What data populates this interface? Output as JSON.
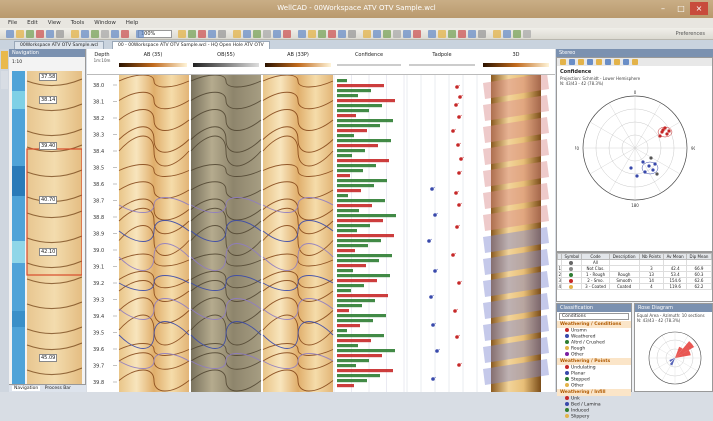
{
  "app": {
    "title": "WellCAD - 00Workspace ATV OTV Sample.wcl",
    "pref_label": "Preferences"
  },
  "menu": [
    "File",
    "Edit",
    "View",
    "Tools",
    "Window",
    "Help"
  ],
  "toolbar": {
    "zoom": "100%"
  },
  "tabs": [
    {
      "label": "00Workspace ATV OTV Sample.wcl",
      "active": false
    },
    {
      "label": "00 - 00Workspace ATV OTV Sample.wcl - HQ Open Hole ATV OTV",
      "active": true
    }
  ],
  "left_panel": {
    "title": "Navigation",
    "scale_top": "1:10",
    "labels": [
      "37.58",
      "38.14",
      "39.40",
      "40.70",
      "42.10",
      "45.09"
    ],
    "footer_tabs": [
      "Navigation",
      "Process Bar"
    ]
  },
  "main": {
    "depth_header": "Depth",
    "depth_unit": "1m:10m",
    "columns": [
      "AB (35)",
      "OB(55)",
      "AB (33P)",
      "Confidence",
      "Tadpole",
      "3D"
    ],
    "depths": [
      "38.0",
      "38.1",
      "38.2",
      "38.3",
      "38.4",
      "38.5",
      "38.6",
      "38.7",
      "38.8",
      "38.9",
      "39.0",
      "39.1",
      "39.2",
      "39.3",
      "39.4",
      "39.5",
      "39.6",
      "39.7",
      "39.8"
    ]
  },
  "stereonet": {
    "panel_title": "Stereo",
    "title": "Confidence",
    "info": [
      "Projection: Schmidt - Lower Hemisphere",
      "N: 43/43 - 42 (78.3%)"
    ],
    "dip_labels": [
      "0",
      "90",
      "180",
      "270"
    ]
  },
  "legend_table": {
    "headers": [
      "",
      "Symbol",
      "Code",
      "Description",
      "Nb Points",
      "Av Mean",
      "Dip Mean"
    ],
    "rows": [
      [
        "",
        "",
        "All",
        "",
        "",
        "",
        ""
      ],
      [
        "1",
        "",
        "Not Clas.",
        "",
        "3",
        "42.4",
        "66.9"
      ],
      [
        "2",
        "",
        "1 - Rough",
        "Rough",
        "13",
        "53.4",
        "60.3"
      ],
      [
        "3",
        "",
        "2 - Smo.",
        "Smooth",
        "14",
        "154.6",
        "62.6"
      ],
      [
        "4",
        "",
        "3 - Coated",
        "Coated",
        "4",
        "119.6",
        "62.2"
      ]
    ]
  },
  "classification": {
    "panel_title": "Classification",
    "selector": "Conditions",
    "groups": [
      {
        "name": "Weathering / Conditions",
        "items": [
          "Unsmn",
          "Weathered",
          "Altrd / Crushed",
          "Rough",
          "Other"
        ]
      },
      {
        "name": "Weathering / Points",
        "items": [
          "Undulating",
          "Planar",
          "Stepped",
          "Other"
        ]
      },
      {
        "name": "Weathering / Infill",
        "items": [
          "Unk",
          "Bed / Lamina",
          "Induced",
          "Slippery"
        ]
      }
    ]
  },
  "rose": {
    "panel_title": "Rose Diagram",
    "info": [
      "Equal Area - Azimuth: 10 sections",
      "N: 43/43 - 42 (78.3%)"
    ]
  },
  "colors": {
    "accent": "#7b91b0",
    "dip_red": "#c62828",
    "dip_blue": "#3949ab",
    "confidence_green": "#2e7d32"
  }
}
